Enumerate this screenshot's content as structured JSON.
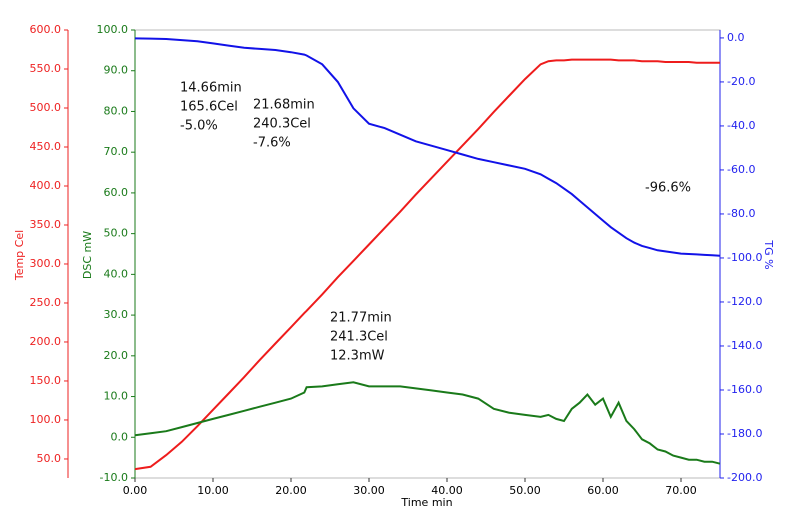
{
  "chart_data": {
    "type": "line",
    "x_label": "Time min",
    "y_label": "DSC mW",
    "y2_label": "TG %",
    "y3_label": "Temp Cel",
    "x": [
      0,
      2,
      4,
      6,
      8,
      10,
      12,
      14,
      16,
      18,
      20,
      21.7,
      22,
      24,
      26,
      28,
      30,
      32,
      34,
      36,
      38,
      40,
      42,
      44,
      46,
      48,
      50,
      52,
      53,
      54,
      55,
      56,
      57,
      58,
      59,
      60,
      61,
      62,
      63,
      64,
      65,
      66,
      67,
      68,
      69,
      70,
      71,
      72,
      73,
      74,
      75
    ],
    "xlim": [
      0,
      75
    ],
    "xticks": [
      {
        "value": 0,
        "label": "0.00"
      },
      {
        "value": 10,
        "label": "10.00"
      },
      {
        "value": 20,
        "label": "20.00"
      },
      {
        "value": 30,
        "label": "30.00"
      },
      {
        "value": 40,
        "label": "40.00"
      },
      {
        "value": 50,
        "label": "50.00"
      },
      {
        "value": 60,
        "label": "60.00"
      },
      {
        "value": 70,
        "label": "70.00"
      }
    ],
    "ylim": [
      -10,
      100
    ],
    "yticks": [
      {
        "value": -10,
        "label": "-10.0"
      },
      {
        "value": 0,
        "label": "0.0"
      },
      {
        "value": 10,
        "label": "10.0"
      },
      {
        "value": 20,
        "label": "20.0"
      },
      {
        "value": 30,
        "label": "30.0"
      },
      {
        "value": 40,
        "label": "40.0"
      },
      {
        "value": 50,
        "label": "50.0"
      },
      {
        "value": 60,
        "label": "60.0"
      },
      {
        "value": 70,
        "label": "70.0"
      },
      {
        "value": 80,
        "label": "80.0"
      },
      {
        "value": 90,
        "label": "90.0"
      },
      {
        "value": 100,
        "label": "100.0"
      }
    ],
    "y2lim": [
      -200,
      3.6
    ],
    "y2ticks": [
      {
        "value": -200,
        "label": "-200.0"
      },
      {
        "value": -180,
        "label": "-180.0"
      },
      {
        "value": -160,
        "label": "-160.0"
      },
      {
        "value": -140,
        "label": "-140.0"
      },
      {
        "value": -120,
        "label": "-120.0"
      },
      {
        "value": -100,
        "label": "-100.0"
      },
      {
        "value": -80,
        "label": "-80.0"
      },
      {
        "value": -60,
        "label": "-60.0"
      },
      {
        "value": -40,
        "label": "-40.0"
      },
      {
        "value": -20,
        "label": "-20.0"
      },
      {
        "value": 0,
        "label": "0.0"
      }
    ],
    "y3lim": [
      25.6,
      600
    ],
    "y3ticks": [
      {
        "value": 50,
        "label": "50.0"
      },
      {
        "value": 100,
        "label": "100.0"
      },
      {
        "value": 150,
        "label": "150.0"
      },
      {
        "value": 200,
        "label": "200.0"
      },
      {
        "value": 250,
        "label": "250.0"
      },
      {
        "value": 300,
        "label": "300.0"
      },
      {
        "value": 350,
        "label": "350.0"
      },
      {
        "value": 400,
        "label": "400.0"
      },
      {
        "value": 450,
        "label": "450.0"
      },
      {
        "value": 500,
        "label": "500.0"
      },
      {
        "value": 550,
        "label": "550.0"
      },
      {
        "value": 600,
        "label": "600.0"
      }
    ],
    "axis_colors": {
      "y": "#1a7a1a",
      "y2": "#2222ee",
      "y3": "#ee2222"
    },
    "series": [
      {
        "axis": "y3",
        "color": "#ee1c1c",
        "values": [
          37,
          40,
          55,
          72,
          92,
          113,
          134,
          155,
          177,
          198,
          219,
          237,
          240,
          261,
          283,
          304,
          325,
          346,
          367,
          389,
          410,
          431,
          452,
          473,
          495,
          516,
          537,
          556,
          560,
          561,
          561,
          562,
          562,
          562,
          562,
          562,
          562,
          561,
          561,
          561,
          560,
          560,
          560,
          559,
          559,
          559,
          559,
          558,
          558,
          558,
          558
        ]
      },
      {
        "axis": "y",
        "color": "#1a7a1a",
        "values": [
          0.5,
          1,
          1.5,
          2.5,
          3.5,
          4.5,
          5.5,
          6.5,
          7.5,
          8.5,
          9.5,
          11,
          12.3,
          12.5,
          13,
          13.5,
          12.5,
          12.5,
          12.5,
          12,
          11.5,
          11,
          10.5,
          9.5,
          7,
          6,
          5.5,
          5,
          5.5,
          4.5,
          4,
          7,
          8.5,
          10.5,
          8,
          9.5,
          5,
          8.5,
          4,
          2,
          -0.5,
          -1.5,
          -3,
          -3.5,
          -4.5,
          -5,
          -5.5,
          -5.5,
          -6,
          -6,
          -6.5
        ]
      },
      {
        "axis": "y2",
        "color": "#1212e8",
        "values": [
          -0.2,
          -0.3,
          -0.5,
          -1,
          -1.5,
          -2.5,
          -3.5,
          -4.5,
          -5,
          -5.5,
          -6.5,
          -7.6,
          -8,
          -12,
          -20,
          -32,
          -39,
          -41,
          -44,
          -47,
          -49,
          -51,
          -53,
          -55,
          -56.5,
          -58,
          -59.5,
          -62,
          -64,
          -66,
          -68.5,
          -71,
          -74,
          -77,
          -80,
          -83,
          -86,
          -88.5,
          -91,
          -93,
          -94.5,
          -95.5,
          -96.5,
          -97,
          -97.5,
          -98,
          -98.2,
          -98.4,
          -98.6,
          -98.8,
          -99
        ]
      }
    ],
    "annotations": [
      {
        "lines": [
          "14.66min",
          "165.6Cel",
          "-5.0%"
        ]
      },
      {
        "lines": [
          "21.68min",
          "240.3Cel",
          "-7.6%"
        ]
      },
      {
        "lines": [
          "-96.6%"
        ]
      },
      {
        "lines": [
          "21.77min",
          "241.3Cel",
          "12.3mW"
        ]
      }
    ]
  }
}
